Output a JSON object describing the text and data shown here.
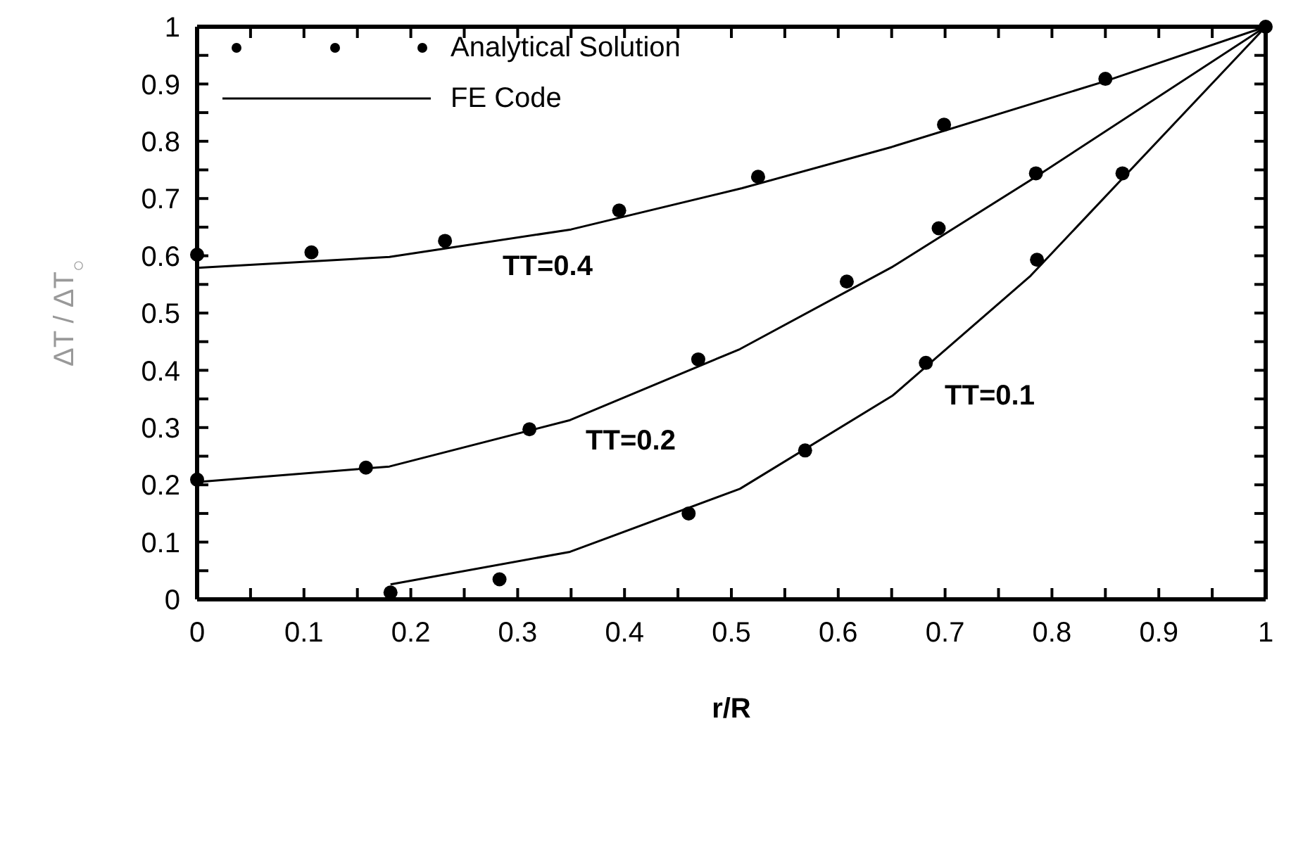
{
  "chart_data": {
    "type": "line",
    "xlabel": "r/R",
    "ylabel": "ΔT / ΔT$_{○}$",
    "xlim": [
      0,
      1
    ],
    "ylim": [
      0,
      1
    ],
    "xticks": [
      0,
      {
        "value": 0.05,
        "label": null
      },
      0.1,
      {
        "value": 0.15,
        "label": null
      },
      0.2,
      {
        "value": 0.25,
        "label": null
      },
      0.3,
      {
        "value": 0.35,
        "label": null
      },
      0.4,
      {
        "value": 0.45,
        "label": null
      },
      0.5,
      {
        "value": 0.55,
        "label": null
      },
      0.6,
      {
        "value": 0.65,
        "label": null
      },
      0.7,
      {
        "value": 0.75,
        "label": null
      },
      0.8,
      {
        "value": 0.85,
        "label": null
      },
      0.9,
      {
        "value": 0.95,
        "label": null
      },
      1
    ],
    "yticks": [
      0,
      {
        "value": 0.05,
        "label": null
      },
      0.1,
      {
        "value": 0.15,
        "label": null
      },
      0.2,
      {
        "value": 0.25,
        "label": null
      },
      0.3,
      {
        "value": 0.35,
        "label": null
      },
      0.4,
      {
        "value": 0.45,
        "label": null
      },
      0.5,
      {
        "value": 0.55,
        "label": null
      },
      0.6,
      {
        "value": 0.65,
        "label": null
      },
      0.7,
      {
        "value": 0.75,
        "label": null
      },
      0.8,
      {
        "value": 0.85,
        "label": null
      },
      0.9,
      {
        "value": 0.95,
        "label": null
      },
      1
    ],
    "legend": "top left",
    "series": [
      {
        "name": "FE Code",
        "color": "#000000",
        "x": [
          0,
          0.18,
          0.35,
          0.51,
          0.65,
          0.85,
          1
        ],
        "values": [
          0.579,
          0.598,
          0.646,
          0.718,
          0.79,
          0.905,
          1
        ]
      },
      {
        "color": "#000000",
        "x": [
          0,
          0.18,
          0.349,
          0.508,
          0.651,
          0.785,
          1
        ],
        "values": [
          0.205,
          0.232,
          0.313,
          0.437,
          0.581,
          0.738,
          1
        ]
      },
      {
        "color": "#000000",
        "x": [
          0.181,
          0.349,
          0.508,
          0.651,
          0.78,
          1
        ],
        "values": [
          0.026,
          0.083,
          0.193,
          0.356,
          0.565,
          1
        ]
      },
      {
        "name": "Analytical Solution",
        "type": "scatter",
        "marker": "circle",
        "color": "#000000",
        "x": [
          0,
          0.107,
          0.232,
          0.395,
          0.525,
          0.699,
          0.85,
          1
        ],
        "values": [
          0.602,
          0.606,
          0.626,
          0.679,
          0.738,
          0.829,
          0.909,
          1
        ]
      },
      {
        "type": "scatter",
        "marker": "circle",
        "color": "#000000",
        "x": [
          0,
          0.158,
          0.311,
          0.469,
          0.608,
          0.694,
          0.785
        ],
        "values": [
          0.209,
          0.23,
          0.297,
          0.419,
          0.555,
          0.648,
          0.744
        ]
      },
      {
        "type": "scatter",
        "marker": "circle",
        "color": "#000000",
        "x": [
          0.181,
          0.283,
          0.46,
          0.569,
          0.682,
          0.786,
          0.866
        ],
        "values": [
          0.012,
          0.035,
          0.15,
          0.26,
          0.413,
          0.593,
          0.744
        ]
      }
    ],
    "annotations": [
      "TT=0.4",
      "TT=0.2",
      "TT=0.1"
    ]
  }
}
